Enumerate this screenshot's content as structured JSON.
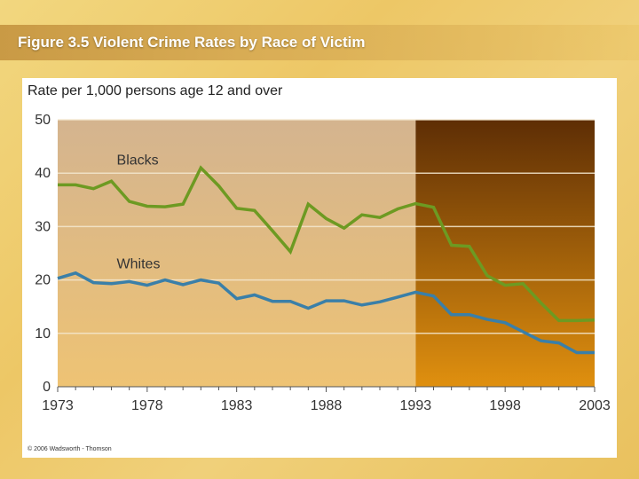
{
  "slide_title": "Figure 3.5 Violent Crime Rates by Race of Victim",
  "copyright": "© 2006 Wadsworth - Thomson",
  "colors": {
    "blacks_line": "#6d9a22",
    "whites_line": "#3a7fa8",
    "left_bg_top": "#d4b48f",
    "left_bg_bottom": "#eec374",
    "right_bg_top": "#5e2e05",
    "right_bg_bottom": "#e0900f"
  },
  "chart_data": {
    "type": "line",
    "ylabel": "Rate per 1,000 persons age 12 and over",
    "ylim": [
      0,
      50
    ],
    "yticks": [
      0,
      10,
      20,
      30,
      40,
      50
    ],
    "xlim": [
      1973,
      2003
    ],
    "xticks": [
      1973,
      1978,
      1983,
      1988,
      1993,
      1998,
      2003
    ],
    "shaded_region_start": 1993,
    "x": [
      1973,
      1974,
      1975,
      1976,
      1977,
      1978,
      1979,
      1980,
      1981,
      1982,
      1983,
      1984,
      1985,
      1986,
      1987,
      1988,
      1989,
      1990,
      1991,
      1992,
      1993,
      1994,
      1995,
      1996,
      1997,
      1998,
      1999,
      2000,
      2001,
      2002,
      2003
    ],
    "series": [
      {
        "name": "Blacks",
        "values": [
          37.8,
          37.8,
          37.1,
          38.5,
          34.7,
          33.8,
          33.7,
          34.2,
          41.0,
          37.6,
          33.4,
          33.0,
          29.2,
          25.3,
          34.2,
          31.5,
          29.7,
          32.2,
          31.7,
          33.3,
          34.3,
          33.6,
          26.5,
          26.3,
          20.8,
          19.0,
          19.3,
          15.7,
          12.4,
          12.4,
          12.5
        ]
      },
      {
        "name": "Whites",
        "values": [
          20.3,
          21.3,
          19.5,
          19.3,
          19.7,
          19.0,
          20.0,
          19.1,
          20.0,
          19.4,
          16.5,
          17.2,
          16.0,
          16.0,
          14.7,
          16.1,
          16.1,
          15.3,
          15.9,
          16.8,
          17.7,
          17.0,
          13.5,
          13.5,
          12.6,
          12.0,
          10.3,
          8.6,
          8.2,
          6.4,
          6.4
        ]
      }
    ]
  }
}
